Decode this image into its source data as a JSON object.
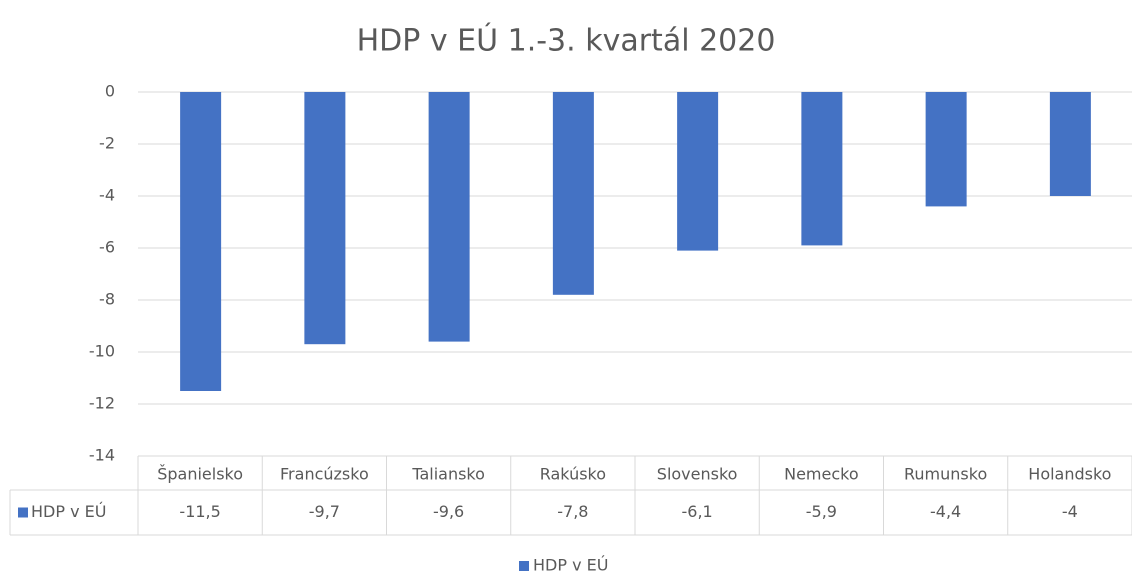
{
  "chart_data": {
    "type": "bar",
    "title": "HDP v EÚ 1.-3. kvartál 2020",
    "categories": [
      "Španielsko",
      "Francúzsko",
      "Taliansko",
      "Rakúsko",
      "Slovensko",
      "Nemecko",
      "Rumunsko",
      "Holandsko"
    ],
    "series": [
      {
        "name": "HDP v EÚ",
        "color": "#4472c4",
        "values": [
          -11.5,
          -9.7,
          -9.6,
          -7.8,
          -6.1,
          -5.9,
          -4.4,
          -4
        ],
        "value_labels": [
          "-11,5",
          "-9,7",
          "-9,6",
          "-7,8",
          "-6,1",
          "-5,9",
          "-4,4",
          "-4"
        ]
      }
    ],
    "ylim": [
      -14,
      0
    ],
    "yticks": [
      0,
      -2,
      -4,
      -6,
      -8,
      -10,
      -12,
      -14
    ],
    "grid": true,
    "legend": "bottom",
    "data_table": true
  }
}
